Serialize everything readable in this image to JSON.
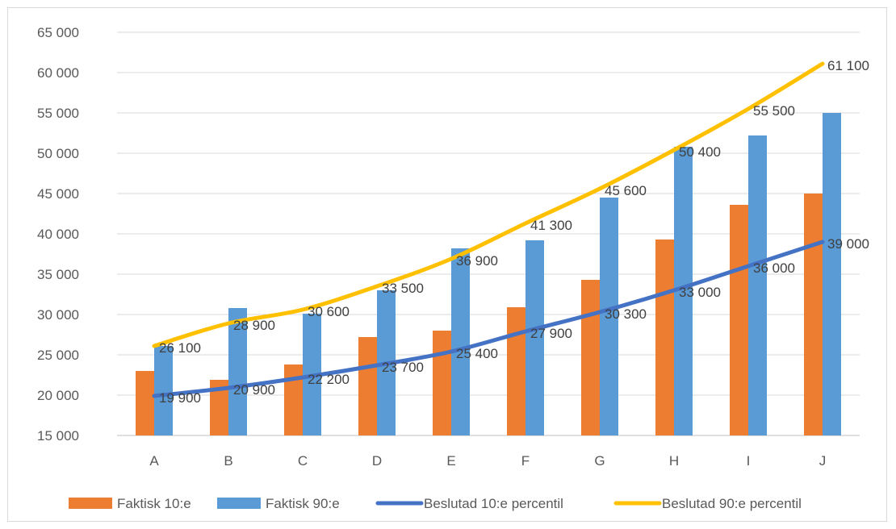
{
  "chart_data": {
    "type": "bar",
    "title": "",
    "xlabel": "",
    "ylabel": "",
    "categories": [
      "A",
      "B",
      "C",
      "D",
      "E",
      "F",
      "G",
      "H",
      "I",
      "J"
    ],
    "ylim": [
      15000,
      65000
    ],
    "yticks": [
      15000,
      20000,
      25000,
      30000,
      35000,
      40000,
      45000,
      50000,
      55000,
      60000,
      65000
    ],
    "ytick_labels": [
      "15 000",
      "20 000",
      "25 000",
      "30 000",
      "35 000",
      "40 000",
      "45 000",
      "50 000",
      "55 000",
      "60 000",
      "65 000"
    ],
    "grid": true,
    "legend_position": "bottom",
    "series": [
      {
        "name": "Faktisk 10:e",
        "kind": "bar",
        "color": "#ED7D31",
        "values": [
          23000,
          21900,
          23800,
          27200,
          28000,
          30900,
          34300,
          39300,
          43600,
          45000
        ]
      },
      {
        "name": "Faktisk 90:e",
        "kind": "bar",
        "color": "#5B9BD5",
        "values": [
          26100,
          30800,
          30100,
          33000,
          38200,
          39200,
          44500,
          50800,
          52200,
          55000
        ]
      },
      {
        "name": "Beslutad 10:e percentil",
        "kind": "line",
        "color": "#4472C4",
        "values": [
          19900,
          20900,
          22200,
          23700,
          25400,
          27900,
          30300,
          33000,
          36000,
          39000
        ],
        "labels": [
          "19 900",
          "20 900",
          "22 200",
          "23 700",
          "25 400",
          "27 900",
          "30 300",
          "33 000",
          "36 000",
          "39 000"
        ]
      },
      {
        "name": "Beslutad 90:e percentil",
        "kind": "line",
        "color": "#FFC000",
        "values": [
          26100,
          28900,
          30600,
          33500,
          36900,
          41300,
          45600,
          50400,
          55500,
          61100
        ],
        "labels": [
          "26 100",
          "28 900",
          "30 600",
          "33 500",
          "36 900",
          "41 300",
          "45 600",
          "50 400",
          "55 500",
          "61 100"
        ]
      }
    ]
  }
}
